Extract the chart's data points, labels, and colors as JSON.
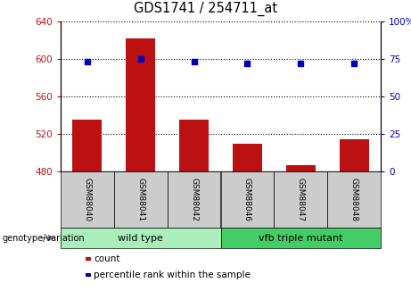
{
  "title": "GDS1741 / 254711_at",
  "categories": [
    "GSM88040",
    "GSM88041",
    "GSM88042",
    "GSM88046",
    "GSM88047",
    "GSM88048"
  ],
  "count_values": [
    535,
    622,
    535,
    510,
    487,
    514
  ],
  "percentile_values": [
    73,
    75,
    73,
    72,
    72,
    72
  ],
  "ylim_left": [
    480,
    640
  ],
  "ylim_right": [
    0,
    100
  ],
  "yticks_left": [
    480,
    520,
    560,
    600,
    640
  ],
  "yticks_right": [
    0,
    25,
    50,
    75,
    100
  ],
  "bar_color": "#BB1111",
  "dot_color": "#0000BB",
  "groups": [
    {
      "label": "wild type",
      "indices": [
        0,
        1,
        2
      ],
      "color": "#AAEEBB"
    },
    {
      "label": "vfb triple mutant",
      "indices": [
        3,
        4,
        5
      ],
      "color": "#44CC66"
    }
  ],
  "group_label": "genotype/variation",
  "legend_items": [
    {
      "color": "#BB1111",
      "label": "count"
    },
    {
      "color": "#0000BB",
      "label": "percentile rank within the sample"
    }
  ],
  "bar_width": 0.55,
  "bar_bottom": 480
}
